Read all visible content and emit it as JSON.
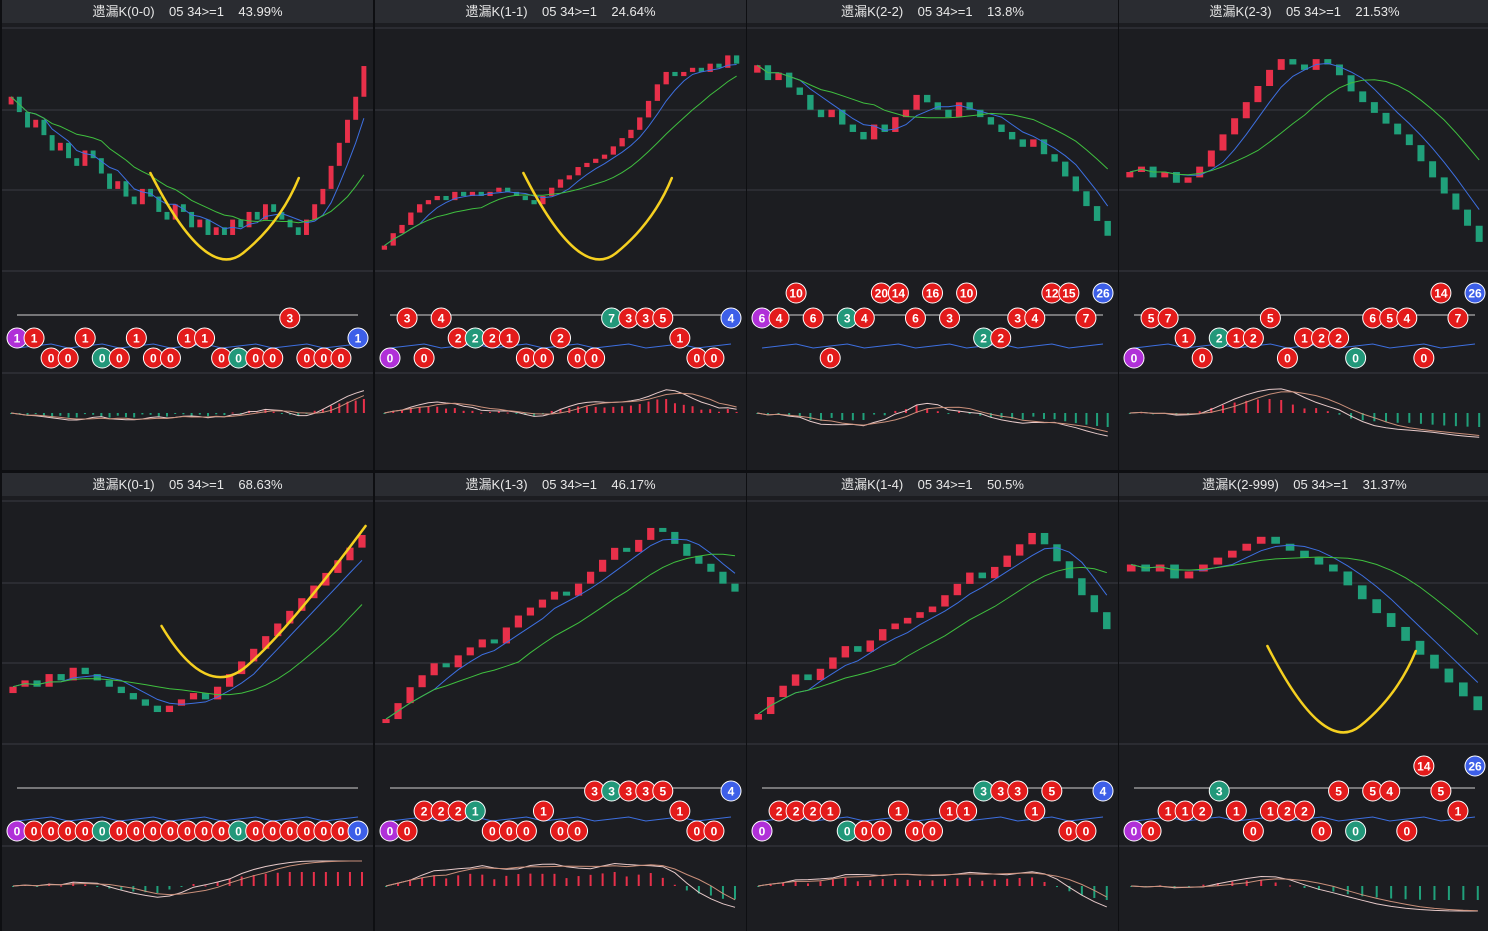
{
  "colors": {
    "background": "#1c1d21",
    "title_bar": "#2a2c31",
    "up_candle": "#e8304a",
    "down_candle": "#20a07a",
    "ma_fast": "#3d6fe0",
    "ma_slow": "#3fbf3f",
    "annotation": "#f5d020",
    "bubble_red": "#e31b1b",
    "bubble_green": "#22987a",
    "bubble_blue": "#3d5fe8",
    "bubble_purple": "#b030d8"
  },
  "panels": [
    {
      "title": "遗漏K(0-0)    05 34>=1    43.99%",
      "prices": [
        100,
        98,
        96,
        97,
        95,
        93,
        94,
        92,
        91,
        93,
        92,
        90,
        88,
        89,
        87,
        86,
        88,
        87,
        85,
        84,
        86,
        85,
        83,
        84,
        82,
        83,
        82,
        84,
        83,
        85,
        84,
        86,
        85,
        84,
        83,
        82,
        84,
        86,
        88,
        91,
        94,
        97,
        100,
        104
      ],
      "annotation": "v",
      "bubbles": [
        "1",
        "1",
        "0",
        "0",
        "1",
        "0",
        "0",
        "1",
        "0",
        "0",
        "1",
        "1",
        "0",
        "0",
        "0",
        "0",
        "3",
        "0",
        "0",
        "0",
        "1"
      ]
    },
    {
      "title": "遗漏K(1-1)    05 34>=1    24.64%",
      "prices": [
        80,
        83,
        85,
        88,
        90,
        91,
        92,
        91,
        93,
        92,
        93,
        92,
        93,
        94,
        93,
        92,
        91,
        90,
        92,
        94,
        96,
        97,
        99,
        100,
        101,
        102,
        104,
        106,
        108,
        111,
        115,
        119,
        122,
        121,
        122,
        123,
        122,
        124,
        123,
        126,
        124
      ],
      "annotation": "v",
      "bubbles": [
        "0",
        "3",
        "0",
        "4",
        "2",
        "2",
        "2",
        "1",
        "0",
        "0",
        "2",
        "0",
        "0",
        "7",
        "3",
        "3",
        "5",
        "1",
        "0",
        "0",
        "4"
      ]
    },
    {
      "title": "遗漏K(2-2)    05 34>=1    13.8%",
      "prices": [
        110,
        108,
        109,
        107,
        106,
        104,
        103,
        104,
        102,
        101,
        100,
        102,
        101,
        103,
        104,
        106,
        105,
        104,
        103,
        105,
        104,
        103,
        102,
        101,
        100,
        99,
        100,
        98,
        97,
        95,
        93,
        91,
        89,
        87
      ],
      "annotation": "none",
      "bubbles": [
        "6",
        "4",
        "10",
        "6",
        "0",
        "3",
        "4",
        "20",
        "14",
        "6",
        "16",
        "3",
        "10",
        "2",
        "2",
        "3",
        "4",
        "12",
        "15",
        "7",
        "26"
      ]
    },
    {
      "title": "遗漏K(2-3)    05 34>=1    21.53%",
      "prices": [
        100,
        101,
        99,
        100,
        98,
        99,
        101,
        104,
        107,
        110,
        113,
        116,
        119,
        121,
        120,
        119,
        121,
        120,
        118,
        115,
        113,
        111,
        109,
        107,
        105,
        102,
        99,
        96,
        93,
        90,
        87
      ],
      "annotation": "none",
      "bubbles": [
        "0",
        "5",
        "7",
        "1",
        "0",
        "2",
        "1",
        "2",
        "5",
        "0",
        "1",
        "2",
        "2",
        "0",
        "6",
        "5",
        "4",
        "0",
        "14",
        "7",
        "26"
      ]
    },
    {
      "title": "遗漏K(0-1)    05 34>=1    68.63%",
      "prices": [
        100,
        101,
        100,
        102,
        101,
        103,
        102,
        101,
        100,
        99,
        98,
        97,
        96,
        97,
        98,
        99,
        98,
        100,
        102,
        104,
        106,
        108,
        110,
        112,
        114,
        116,
        118,
        120,
        122,
        124
      ],
      "annotation": "v-up",
      "bubbles": [
        "0",
        "0",
        "0",
        "0",
        "0",
        "0",
        "0",
        "0",
        "0",
        "0",
        "0",
        "0",
        "0",
        "0",
        "0",
        "0",
        "0",
        "0",
        "0",
        "0",
        "0"
      ]
    },
    {
      "title": "遗漏K(1-3)    05 34>=1    46.17%",
      "prices": [
        80,
        84,
        88,
        91,
        94,
        93,
        96,
        98,
        100,
        99,
        103,
        106,
        108,
        110,
        112,
        111,
        114,
        117,
        120,
        123,
        122,
        125,
        128,
        127,
        124,
        121,
        119,
        117,
        114,
        112
      ],
      "annotation": "none",
      "bubbles": [
        "0",
        "0",
        "2",
        "2",
        "2",
        "1",
        "0",
        "0",
        "0",
        "1",
        "0",
        "0",
        "3",
        "3",
        "3",
        "3",
        "5",
        "1",
        "0",
        "0",
        "4"
      ]
    },
    {
      "title": "遗漏K(1-4)    05 34>=1    50.5%",
      "prices": [
        80,
        83,
        85,
        87,
        86,
        88,
        90,
        92,
        91,
        93,
        95,
        96,
        97,
        98,
        99,
        101,
        103,
        105,
        104,
        106,
        108,
        110,
        112,
        110,
        107,
        104,
        101,
        98,
        95
      ],
      "annotation": "none",
      "bubbles": [
        "0",
        "2",
        "2",
        "2",
        "1",
        "0",
        "0",
        "0",
        "1",
        "0",
        "0",
        "1",
        "1",
        "3",
        "3",
        "3",
        "1",
        "5",
        "0",
        "0",
        "4"
      ]
    },
    {
      "title": "遗漏K(2-999)    05 34>=1    31.37%",
      "prices": [
        100,
        99,
        100,
        98,
        99,
        100,
        101,
        102,
        103,
        104,
        103,
        102,
        101,
        100,
        99,
        97,
        95,
        93,
        91,
        89,
        87,
        85,
        83,
        81,
        79
      ],
      "annotation": "v",
      "bubbles": [
        "0",
        "0",
        "1",
        "1",
        "2",
        "3",
        "1",
        "0",
        "1",
        "2",
        "2",
        "0",
        "5",
        "0",
        "5",
        "4",
        "0",
        "14",
        "5",
        "1",
        "26"
      ]
    }
  ]
}
